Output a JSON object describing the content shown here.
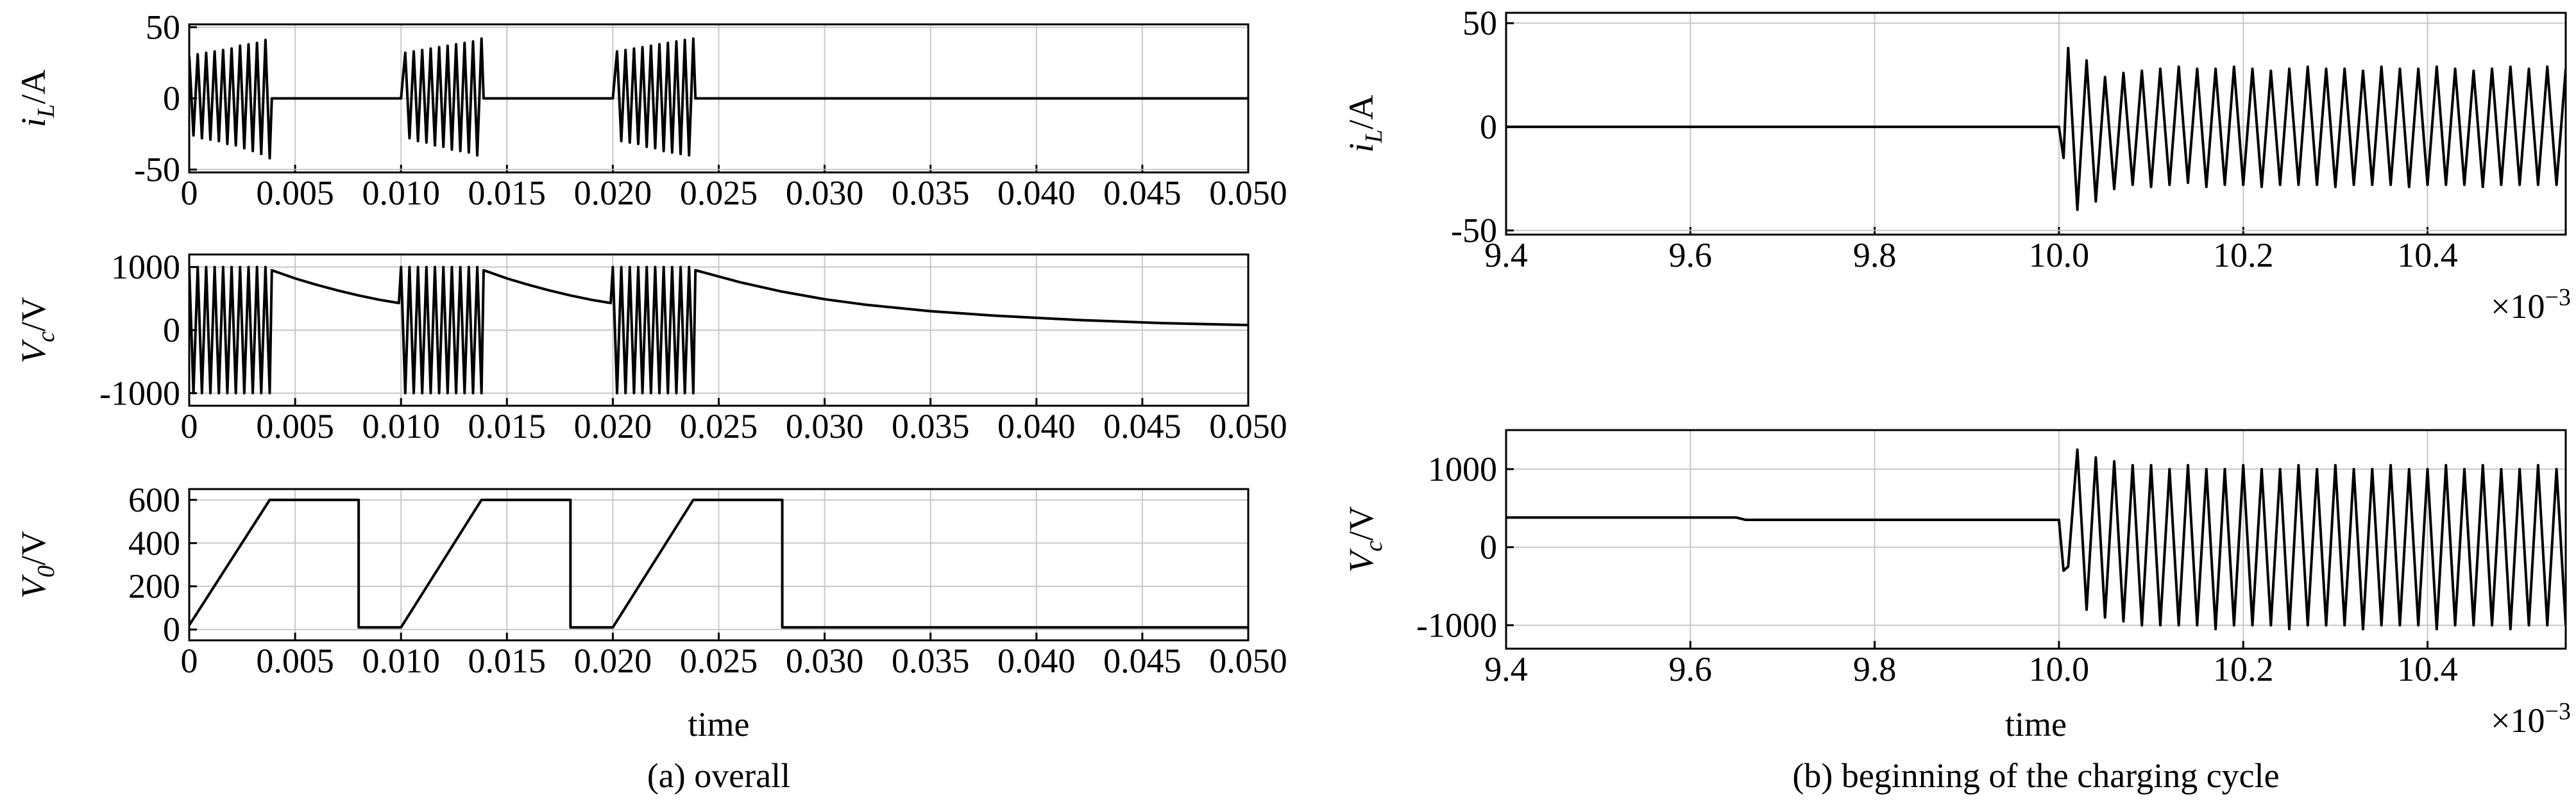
{
  "chart_data": [
    {
      "type": "line",
      "ylabel": [
        "i",
        "L",
        "/A"
      ],
      "xlim": [
        0,
        0.05
      ],
      "xticks": [
        0,
        0.005,
        {
          "value": 0.01,
          "label": "0.010"
        },
        0.015,
        {
          "value": 0.02,
          "label": "0.020"
        },
        0.025,
        {
          "value": 0.03,
          "label": "0.030"
        },
        0.035,
        {
          "value": 0.04,
          "label": "0.040"
        },
        0.045,
        {
          "value": 0.05,
          "label": "0.050"
        }
      ],
      "ylim": [
        -52,
        52
      ],
      "yticks": [
        -50,
        0,
        50
      ],
      "grid": true,
      "x": [
        0,
        0.0002,
        0.0004,
        0.0006,
        0.0008,
        0.001,
        0.0012,
        0.0014,
        0.0016,
        0.0018,
        0.002,
        0.0022,
        0.0024,
        0.0026,
        0.0028,
        0.003,
        0.0032,
        0.0034,
        0.0036,
        0.0038,
        0.0039,
        0.01,
        0.0102,
        0.0104,
        0.0106,
        0.0108,
        0.011,
        0.0112,
        0.0114,
        0.0116,
        0.0118,
        0.012,
        0.0122,
        0.0124,
        0.0126,
        0.0128,
        0.013,
        0.0132,
        0.0134,
        0.0136,
        0.0138,
        0.0139,
        0.02,
        0.0202,
        0.0204,
        0.0206,
        0.0208,
        0.021,
        0.0212,
        0.0214,
        0.0216,
        0.0218,
        0.022,
        0.0222,
        0.0224,
        0.0226,
        0.0228,
        0.023,
        0.0232,
        0.0234,
        0.0236,
        0.0238,
        0.0239,
        0.05
      ],
      "series": [
        {
          "color": "#000000",
          "values": [
            30,
            -26,
            31,
            -28,
            32,
            -29,
            33,
            -30,
            34,
            -32,
            35,
            -33,
            37,
            -35,
            38,
            -37,
            39,
            -39,
            41,
            -42,
            0,
            0,
            32,
            -28,
            33,
            -30,
            34,
            -31,
            35,
            -33,
            36,
            -34,
            37,
            -36,
            38,
            -37,
            39,
            -38,
            40,
            -40,
            42,
            0,
            0,
            33,
            -30,
            34,
            -31,
            35,
            -32,
            36,
            -34,
            37,
            -35,
            38,
            -37,
            39,
            -38,
            40,
            -39,
            41,
            -40,
            42,
            0,
            0
          ]
        }
      ]
    },
    {
      "type": "line",
      "ylabel": [
        "V",
        "c",
        "/V"
      ],
      "xlim": [
        0,
        0.05
      ],
      "xticks": [
        0,
        0.005,
        {
          "value": 0.01,
          "label": "0.010"
        },
        0.015,
        {
          "value": 0.02,
          "label": "0.020"
        },
        0.025,
        {
          "value": 0.03,
          "label": "0.030"
        },
        0.035,
        {
          "value": 0.04,
          "label": "0.040"
        },
        0.045,
        {
          "value": 0.05,
          "label": "0.050"
        }
      ],
      "ylim": [
        -1200,
        1200
      ],
      "yticks": [
        -1000,
        0,
        1000
      ],
      "grid": true,
      "x": [
        0,
        0.0002,
        0.0004,
        0.0006,
        0.0008,
        0.001,
        0.0012,
        0.0014,
        0.0016,
        0.0018,
        0.002,
        0.0022,
        0.0024,
        0.0026,
        0.0028,
        0.003,
        0.0032,
        0.0034,
        0.0036,
        0.0038,
        0.0039,
        0.005,
        0.006,
        0.007,
        0.008,
        0.009,
        0.0099,
        0.01,
        0.0102,
        0.0104,
        0.0106,
        0.0108,
        0.011,
        0.0112,
        0.0114,
        0.0116,
        0.0118,
        0.012,
        0.0122,
        0.0124,
        0.0126,
        0.0128,
        0.013,
        0.0132,
        0.0134,
        0.0136,
        0.0138,
        0.0139,
        0.015,
        0.016,
        0.017,
        0.018,
        0.019,
        0.0199,
        0.02,
        0.0202,
        0.0204,
        0.0206,
        0.0208,
        0.021,
        0.0212,
        0.0214,
        0.0216,
        0.0218,
        0.022,
        0.0222,
        0.0224,
        0.0226,
        0.0228,
        0.023,
        0.0232,
        0.0234,
        0.0236,
        0.0238,
        0.0239,
        0.026,
        0.028,
        0.03,
        0.032,
        0.035,
        0.038,
        0.042,
        0.046,
        0.05
      ],
      "series": [
        {
          "color": "#000000",
          "values": [
            1000,
            -1000,
            1000,
            -1000,
            1000,
            -1000,
            1000,
            -1000,
            1000,
            -1000,
            1000,
            -1000,
            1000,
            -1000,
            1000,
            -1000,
            1000,
            -1000,
            1000,
            -1000,
            950,
            820,
            720,
            630,
            550,
            480,
            430,
            1000,
            -1000,
            1000,
            -1000,
            1000,
            -1000,
            1000,
            -1000,
            1000,
            -1000,
            1000,
            -1000,
            1000,
            -1000,
            1000,
            -1000,
            1000,
            -1000,
            1000,
            -1000,
            950,
            820,
            720,
            630,
            550,
            480,
            430,
            1000,
            -1000,
            1000,
            -1000,
            1000,
            -1000,
            1000,
            -1000,
            1000,
            -1000,
            1000,
            -1000,
            1000,
            -1000,
            1000,
            -1000,
            1000,
            -1000,
            1000,
            -1000,
            950,
            760,
            610,
            490,
            400,
            300,
            230,
            160,
            110,
            80
          ]
        }
      ]
    },
    {
      "type": "line",
      "ylabel": [
        "V",
        "0",
        "/V"
      ],
      "xlabel": "time",
      "caption": "(a) overall",
      "xlim": [
        0,
        0.05
      ],
      "xticks": [
        0,
        0.005,
        {
          "value": 0.01,
          "label": "0.010"
        },
        0.015,
        {
          "value": 0.02,
          "label": "0.020"
        },
        0.025,
        {
          "value": 0.03,
          "label": "0.030"
        },
        0.035,
        {
          "value": 0.04,
          "label": "0.040"
        },
        0.045,
        {
          "value": 0.05,
          "label": "0.050"
        }
      ],
      "ylim": [
        -50,
        650
      ],
      "yticks": [
        0,
        200,
        400,
        600
      ],
      "grid": true,
      "x": [
        0,
        0.0038,
        0.008,
        0.008,
        0.01,
        0.0138,
        0.018,
        0.018,
        0.02,
        0.0238,
        0.028,
        0.028,
        0.05
      ],
      "series": [
        {
          "color": "#000000",
          "values": [
            20,
            600,
            600,
            10,
            10,
            600,
            600,
            10,
            10,
            600,
            600,
            10,
            10
          ]
        }
      ]
    },
    {
      "type": "line",
      "ylabel": [
        "i",
        "L",
        "/A"
      ],
      "x_multiplier": [
        "×10",
        "−3"
      ],
      "xlim": [
        9.4,
        10.55
      ],
      "xticks": [
        9.4,
        9.6,
        9.8,
        {
          "value": 10,
          "label": "10.0"
        },
        10.2,
        10.4
      ],
      "ylim": [
        -52,
        55
      ],
      "yticks": [
        -50,
        0,
        50
      ],
      "grid": true,
      "x": [
        9.4,
        10.0,
        10.005,
        10.01,
        10.02,
        10.03,
        10.04,
        10.05,
        10.06,
        10.07,
        10.08,
        10.09,
        10.1,
        10.11,
        10.12,
        10.13,
        10.14,
        10.15,
        10.16,
        10.17,
        10.18,
        10.19,
        10.2,
        10.21,
        10.22,
        10.23,
        10.24,
        10.25,
        10.26,
        10.27,
        10.28,
        10.29,
        10.3,
        10.31,
        10.32,
        10.33,
        10.34,
        10.35,
        10.36,
        10.37,
        10.38,
        10.39,
        10.4,
        10.41,
        10.42,
        10.43,
        10.44,
        10.45,
        10.46,
        10.47,
        10.48,
        10.49,
        10.5,
        10.51,
        10.52,
        10.53,
        10.54,
        10.55
      ],
      "series": [
        {
          "color": "#000000",
          "values": [
            0,
            0,
            -15,
            38,
            -40,
            32,
            -36,
            24,
            -30,
            26,
            -28,
            27,
            -29,
            28,
            -28,
            29,
            -27,
            28,
            -29,
            28,
            -28,
            29,
            -28,
            28,
            -29,
            27,
            -28,
            28,
            -28,
            29,
            -28,
            28,
            -29,
            28,
            -28,
            27,
            -28,
            29,
            -28,
            28,
            -29,
            28,
            -28,
            29,
            -28,
            28,
            -28,
            27,
            -29,
            28,
            -28,
            29,
            -28,
            28,
            -28,
            29,
            -28,
            28
          ]
        }
      ]
    },
    {
      "type": "line",
      "ylabel": [
        "V",
        "c",
        "/V"
      ],
      "xlabel": "time",
      "caption": "(b) beginning of the charging cycle",
      "x_multiplier": [
        "×10",
        "−3"
      ],
      "xlim": [
        9.4,
        10.55
      ],
      "xticks": [
        9.4,
        9.6,
        9.8,
        {
          "value": 10,
          "label": "10.0"
        },
        10.2,
        10.4
      ],
      "ylim": [
        -1300,
        1500
      ],
      "yticks": [
        -1000,
        0,
        1000
      ],
      "grid": true,
      "x": [
        9.4,
        9.65,
        9.66,
        10.0,
        10.005,
        10.01,
        10.02,
        10.03,
        10.04,
        10.05,
        10.06,
        10.07,
        10.08,
        10.09,
        10.1,
        10.11,
        10.12,
        10.13,
        10.14,
        10.15,
        10.16,
        10.17,
        10.18,
        10.19,
        10.2,
        10.21,
        10.22,
        10.23,
        10.24,
        10.25,
        10.26,
        10.27,
        10.28,
        10.29,
        10.3,
        10.31,
        10.32,
        10.33,
        10.34,
        10.35,
        10.36,
        10.37,
        10.38,
        10.39,
        10.4,
        10.41,
        10.42,
        10.43,
        10.44,
        10.45,
        10.46,
        10.47,
        10.48,
        10.49,
        10.5,
        10.51,
        10.52,
        10.53,
        10.54,
        10.55
      ],
      "series": [
        {
          "color": "#000000",
          "values": [
            380,
            380,
            350,
            350,
            -300,
            -250,
            1250,
            -800,
            1150,
            -900,
            1100,
            -950,
            1050,
            -1000,
            1050,
            -1000,
            1000,
            -1000,
            1050,
            -1000,
            1000,
            -1050,
            1000,
            -1000,
            1050,
            -1000,
            1000,
            -1000,
            1000,
            -1050,
            1050,
            -1000,
            1000,
            -1000,
            1050,
            -1000,
            1000,
            -1050,
            1000,
            -1000,
            1050,
            -1000,
            1000,
            -1000,
            1000,
            -1050,
            1050,
            -1000,
            1000,
            -1000,
            1050,
            -1000,
            1000,
            -1050,
            1000,
            -1000,
            1050,
            -1000,
            1000,
            -1000
          ]
        }
      ]
    }
  ]
}
